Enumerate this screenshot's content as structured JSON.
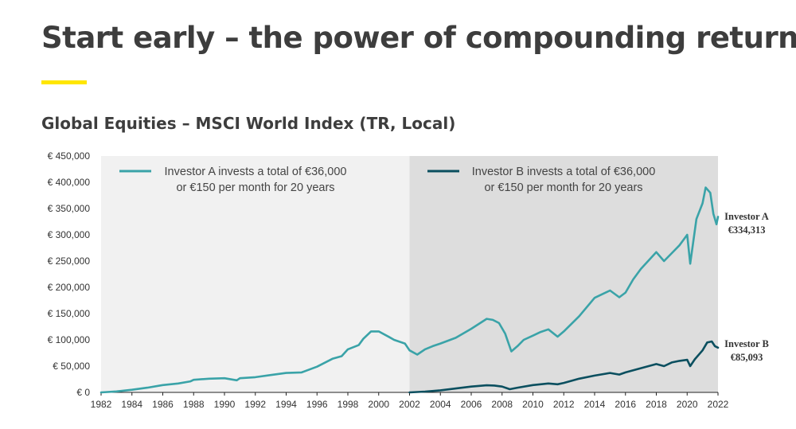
{
  "page": {
    "title": "Start early – the power of compounding returns",
    "subtitle": "Global Equities – MSCI World Index (TR, Local)"
  },
  "colors": {
    "accent": "#ffe600",
    "series_a": "#3aa3a8",
    "series_b": "#0b4f5f",
    "region_a_bg": "#f1f1f1",
    "region_b_bg": "#dddddd"
  },
  "chart_data": {
    "type": "line",
    "title": "Global Equities – MSCI World Index (TR, Local)",
    "xlabel": "",
    "ylabel": "",
    "xlim": [
      1982,
      2022
    ],
    "ylim": [
      0,
      450000
    ],
    "x_ticks": [
      1982,
      1984,
      1986,
      1988,
      1990,
      1992,
      1994,
      1996,
      1998,
      2000,
      2002,
      2004,
      2006,
      2008,
      2010,
      2012,
      2014,
      2016,
      2018,
      2020,
      2022
    ],
    "x_tick_labels": [
      "1982",
      "1984",
      "1986",
      "1988",
      "1990",
      "1992",
      "1994",
      "1996",
      "1998",
      "2000",
      "2002",
      "2004",
      "2006",
      "2008",
      "2010",
      "2012",
      "2014",
      "2016",
      "2018",
      "2020",
      "2022"
    ],
    "y_ticks": [
      0,
      50000,
      100000,
      150000,
      200000,
      250000,
      300000,
      350000,
      400000,
      450000
    ],
    "y_tick_labels": [
      "€ 0",
      "€ 50,000",
      "€ 100,000",
      "€ 150,000",
      "€ 200,000",
      "€ 250,000",
      "€ 300,000",
      "€ 350,000",
      "€ 400,000",
      "€ 450,000"
    ],
    "shaded_regions": [
      {
        "from": 1982,
        "to": 2002,
        "name": "Investor A period"
      },
      {
        "from": 2002,
        "to": 2022,
        "name": "Investor B period"
      }
    ],
    "legend": [
      {
        "name": "Investor A",
        "line1": "Investor A invests a total of €36,000",
        "line2": "or €150 per month for 20 years"
      },
      {
        "name": "Investor B",
        "line1": "Investor B invests a total of €36,000",
        "line2": "or €150 per month for 20 years"
      }
    ],
    "series": [
      {
        "name": "Investor A",
        "end_label": "Investor A",
        "end_value_label": "€334,313",
        "x": [
          1982,
          1983,
          1984,
          1985,
          1986,
          1987,
          1987.8,
          1988,
          1989,
          1990,
          1990.8,
          1991,
          1992,
          1993,
          1994,
          1995,
          1996,
          1997,
          1997.6,
          1998,
          1998.7,
          1999,
          1999.5,
          2000,
          2000.7,
          2001,
          2001.7,
          2002,
          2002.5,
          2003,
          2003.5,
          2004,
          2005,
          2006,
          2007,
          2007.4,
          2007.8,
          2008.2,
          2008.6,
          2009,
          2009.4,
          2010,
          2010.5,
          2011,
          2011.6,
          2012,
          2013,
          2014,
          2015,
          2015.6,
          2016,
          2016.5,
          2017,
          2018,
          2018.5,
          2019,
          2019.5,
          2020,
          2020.2,
          2020.6,
          2021,
          2021.2,
          2021.5,
          2021.7,
          2021.9,
          2022
        ],
        "values": [
          0,
          1800,
          5000,
          9000,
          14000,
          17000,
          21000,
          24000,
          26000,
          27000,
          23000,
          27000,
          29000,
          33000,
          37000,
          38000,
          49000,
          64000,
          69000,
          82000,
          90000,
          102000,
          116000,
          116000,
          105000,
          100000,
          93000,
          80000,
          72000,
          82000,
          88000,
          93000,
          104000,
          121000,
          140000,
          138000,
          132000,
          112000,
          78000,
          88000,
          100000,
          108000,
          115000,
          120000,
          106000,
          116000,
          145000,
          180000,
          194000,
          181000,
          190000,
          215000,
          235000,
          267000,
          250000,
          265000,
          280000,
          300000,
          245000,
          330000,
          360000,
          390000,
          380000,
          340000,
          320000,
          334313
        ]
      },
      {
        "name": "Investor B",
        "end_label": "Investor B",
        "end_value_label": "€85,093",
        "x": [
          2002,
          2003,
          2004,
          2005,
          2006,
          2007,
          2007.5,
          2008,
          2008.5,
          2009,
          2010,
          2011,
          2011.6,
          2012,
          2013,
          2014,
          2015,
          2015.6,
          2016,
          2017,
          2018,
          2018.5,
          2019,
          2019.5,
          2020,
          2020.2,
          2020.5,
          2021,
          2021.3,
          2021.6,
          2021.8,
          2022
        ],
        "values": [
          0,
          1500,
          4000,
          7500,
          11000,
          13500,
          13000,
          11000,
          6000,
          9000,
          14000,
          17000,
          15500,
          18000,
          26000,
          32000,
          37000,
          34000,
          38000,
          46000,
          54000,
          50000,
          57000,
          60000,
          62000,
          50000,
          63000,
          80000,
          95000,
          97000,
          88000,
          85093
        ]
      }
    ]
  }
}
